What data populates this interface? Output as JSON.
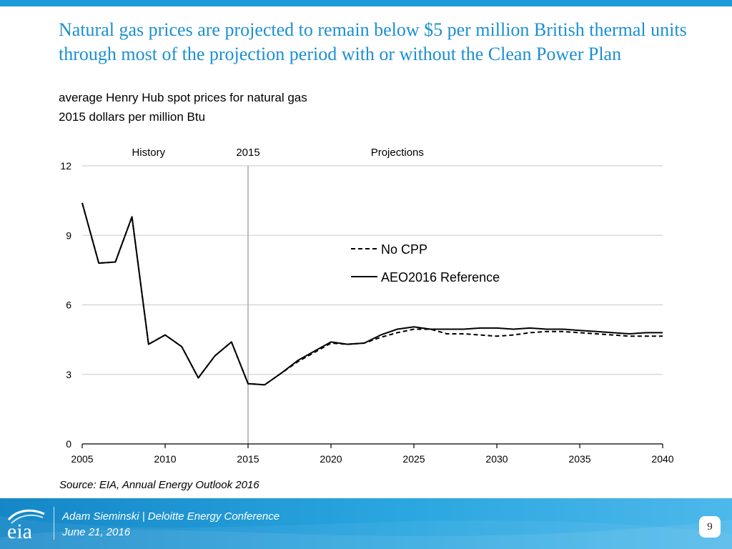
{
  "slide": {
    "title": "Natural gas prices are projected to remain below $5 per million British thermal units through most of the projection period with or without the Clean Power Plan",
    "subtitle_line1": "average Henry Hub spot prices for natural gas",
    "subtitle_line2": "2015 dollars per million Btu",
    "source": "Source:  EIA, Annual Energy Outlook 2016",
    "footer_line1": "Adam Sieminski | Deloitte Energy Conference",
    "footer_line2": "June 21, 2016",
    "page_number": "9",
    "logo_text": "eia"
  },
  "colors": {
    "accent": "#1b8fd3",
    "top_bar": "#1a9ad7",
    "grid": "#c8c8c8",
    "divider": "#a8a8a8",
    "series": "#000000"
  },
  "chart_data": {
    "type": "line",
    "title": "",
    "xlabel": "",
    "ylabel": "",
    "xlim": [
      2005,
      2040
    ],
    "ylim": [
      0,
      12
    ],
    "x_ticks": [
      2005,
      2010,
      2015,
      2020,
      2025,
      2030,
      2035,
      2040
    ],
    "y_ticks": [
      0,
      3,
      6,
      9,
      12
    ],
    "grid": "horizontal",
    "annotations": [
      {
        "text": "History",
        "x": 2009
      },
      {
        "text": "2015",
        "x": 2015
      },
      {
        "text": "Projections",
        "x": 2024
      }
    ],
    "divider_year": 2015,
    "legend_position": "center-right",
    "x": [
      2005,
      2006,
      2007,
      2008,
      2009,
      2010,
      2011,
      2012,
      2013,
      2014,
      2015,
      2016,
      2017,
      2018,
      2019,
      2020,
      2021,
      2022,
      2023,
      2024,
      2025,
      2026,
      2027,
      2028,
      2029,
      2030,
      2031,
      2032,
      2033,
      2034,
      2035,
      2036,
      2037,
      2038,
      2039,
      2040
    ],
    "series": [
      {
        "name": "No CPP",
        "style": "dashed",
        "values": [
          10.4,
          7.8,
          7.85,
          9.8,
          4.3,
          4.7,
          4.2,
          2.85,
          3.8,
          4.4,
          2.6,
          2.55,
          3.05,
          3.55,
          3.95,
          4.35,
          4.3,
          4.35,
          4.6,
          4.8,
          4.95,
          4.95,
          4.75,
          4.75,
          4.7,
          4.65,
          4.7,
          4.8,
          4.85,
          4.85,
          4.8,
          4.75,
          4.7,
          4.65,
          4.65,
          4.65
        ]
      },
      {
        "name": "AEO2016 Reference",
        "style": "solid",
        "values": [
          10.4,
          7.8,
          7.85,
          9.8,
          4.3,
          4.7,
          4.2,
          2.85,
          3.8,
          4.4,
          2.6,
          2.55,
          3.05,
          3.6,
          4.0,
          4.4,
          4.3,
          4.35,
          4.7,
          4.95,
          5.05,
          4.95,
          4.95,
          4.95,
          5.0,
          5.0,
          4.95,
          5.0,
          4.95,
          4.95,
          4.9,
          4.85,
          4.8,
          4.75,
          4.8,
          4.8
        ]
      }
    ]
  }
}
